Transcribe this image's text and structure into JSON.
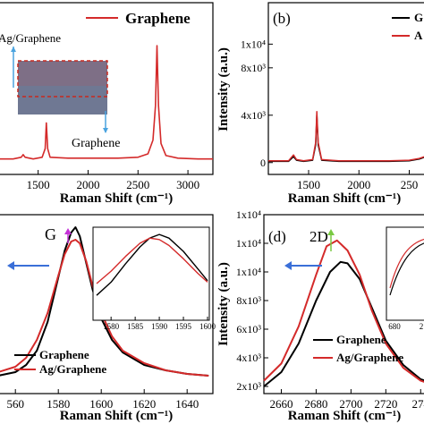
{
  "chart_data": [
    {
      "panel": "a",
      "type": "line",
      "xlabel": "Raman Shift (cm⁻¹)",
      "xlim": [
        1100,
        3250
      ],
      "ylim": [
        0,
        1
      ],
      "x_ticks": [
        "1500",
        "2000",
        "2500",
        "3000"
      ],
      "legend": [
        "Graphene"
      ],
      "annotations": [
        "Ag/Graphene",
        "Graphene"
      ],
      "series": [
        {
          "name": "Graphene",
          "color": "#d42a2a",
          "x": [
            1100,
            1250,
            1330,
            1350,
            1370,
            1450,
            1540,
            1570,
            1582,
            1595,
            1620,
            1800,
            2000,
            2300,
            2500,
            2600,
            2650,
            2675,
            2690,
            2705,
            2730,
            2780,
            2900,
            3100,
            3250
          ],
          "y": [
            0.09,
            0.09,
            0.1,
            0.115,
            0.1,
            0.09,
            0.1,
            0.15,
            0.3,
            0.15,
            0.1,
            0.095,
            0.095,
            0.095,
            0.1,
            0.12,
            0.2,
            0.4,
            0.75,
            0.4,
            0.18,
            0.11,
            0.095,
            0.09,
            0.09
          ]
        }
      ]
    },
    {
      "panel": "b",
      "type": "line",
      "xlabel": "Raman Shift (cm⁻¹)",
      "ylabel": "Intensity (a.u.)",
      "xlim": [
        1100,
        2700
      ],
      "ylim": [
        -1000,
        13500
      ],
      "x_ticks": [
        "1500",
        "2000",
        "250"
      ],
      "y_ticks": [
        "0",
        "4x10³",
        "8x10³",
        "1x10⁴"
      ],
      "legend": [
        "G",
        "A"
      ],
      "series": [
        {
          "name": "G",
          "color": "#000000",
          "x": [
            1100,
            1300,
            1350,
            1380,
            1450,
            1540,
            1570,
            1582,
            1595,
            1630,
            1800,
            2000,
            2300,
            2500,
            2600,
            2700
          ],
          "y": [
            100,
            100,
            500,
            200,
            100,
            200,
            1500,
            4000,
            1500,
            200,
            100,
            100,
            100,
            150,
            300,
            600
          ]
        },
        {
          "name": "A",
          "color": "#d42a2a",
          "x": [
            1100,
            1300,
            1350,
            1380,
            1450,
            1540,
            1570,
            1582,
            1595,
            1630,
            1800,
            2000,
            2300,
            2500,
            2600,
            2700
          ],
          "y": [
            150,
            150,
            650,
            250,
            150,
            250,
            1700,
            4300,
            1700,
            250,
            150,
            150,
            150,
            200,
            350,
            650
          ]
        }
      ]
    },
    {
      "panel": "c",
      "type": "line",
      "xlabel": "Raman Shift (cm⁻¹)",
      "xlim": [
        1552,
        1652
      ],
      "ylim": [
        0,
        1
      ],
      "x_ticks": [
        "560",
        "1580",
        "1600",
        "1620",
        "1640"
      ],
      "peak_label": "G",
      "legend": [
        "Graphene",
        "Ag/Graphene"
      ],
      "series": [
        {
          "name": "Graphene",
          "color": "#000000",
          "x": [
            1552,
            1560,
            1565,
            1570,
            1575,
            1580,
            1583,
            1586,
            1588,
            1590,
            1593,
            1596,
            1600,
            1605,
            1610,
            1620,
            1630,
            1640,
            1650
          ],
          "y": [
            0.1,
            0.12,
            0.16,
            0.24,
            0.4,
            0.65,
            0.8,
            0.9,
            0.93,
            0.88,
            0.73,
            0.58,
            0.42,
            0.3,
            0.23,
            0.16,
            0.13,
            0.11,
            0.1
          ]
        },
        {
          "name": "Ag/Graphene",
          "color": "#d42a2a",
          "x": [
            1552,
            1560,
            1565,
            1570,
            1575,
            1580,
            1583,
            1586,
            1588,
            1590,
            1593,
            1596,
            1600,
            1605,
            1610,
            1620,
            1630,
            1640,
            1650
          ],
          "y": [
            0.12,
            0.15,
            0.2,
            0.3,
            0.45,
            0.66,
            0.78,
            0.85,
            0.86,
            0.84,
            0.74,
            0.6,
            0.45,
            0.32,
            0.24,
            0.17,
            0.13,
            0.11,
            0.1
          ]
        }
      ],
      "inset": {
        "xlim": [
          1577,
          1600
        ],
        "x_ticks": [
          "1580",
          "1585",
          "1590",
          "1595",
          "1600"
        ],
        "series": [
          {
            "name": "Graphene",
            "color": "#000000",
            "x": [
              1577,
              1580,
              1583,
              1586,
              1588,
              1590,
              1592,
              1595,
              1598,
              1600
            ],
            "y": [
              0.12,
              0.3,
              0.55,
              0.78,
              0.9,
              0.95,
              0.9,
              0.72,
              0.48,
              0.32
            ]
          },
          {
            "name": "Ag/Graphene",
            "color": "#d42a2a",
            "x": [
              1577,
              1580,
              1583,
              1586,
              1588,
              1590,
              1592,
              1595,
              1598,
              1600
            ],
            "y": [
              0.28,
              0.45,
              0.65,
              0.83,
              0.9,
              0.88,
              0.8,
              0.62,
              0.42,
              0.3
            ]
          }
        ]
      }
    },
    {
      "panel": "d",
      "type": "line",
      "xlabel": "Raman Shift (cm⁻¹)",
      "ylabel": "Intensity (a.u.)",
      "xlim": [
        2650,
        2745
      ],
      "ylim": [
        1500,
        14000
      ],
      "x_ticks": [
        "2660",
        "2680",
        "2700",
        "2720",
        "274"
      ],
      "y_ticks": [
        "2x10³",
        "4x10³",
        "6x10³",
        "8x10³",
        "1x10⁴",
        "1x10⁴",
        "1x10⁴"
      ],
      "peak_label": "2D",
      "legend": [
        "Graphene",
        "Ag/Graphene"
      ],
      "series": [
        {
          "name": "Graphene",
          "color": "#000000",
          "x": [
            2650,
            2660,
            2670,
            2680,
            2688,
            2694,
            2698,
            2705,
            2712,
            2720,
            2730,
            2740,
            2745
          ],
          "y": [
            2000,
            3000,
            5000,
            8000,
            10000,
            10700,
            10600,
            9500,
            7500,
            5200,
            3500,
            2500,
            2300
          ]
        },
        {
          "name": "Ag/Graphene",
          "color": "#d42a2a",
          "x": [
            2650,
            2660,
            2670,
            2680,
            2686,
            2692,
            2698,
            2705,
            2712,
            2720,
            2730,
            2740,
            2745
          ],
          "y": [
            2400,
            3600,
            6200,
            9800,
            11800,
            12200,
            11500,
            9800,
            7300,
            5000,
            3300,
            2400,
            2200
          ]
        }
      ],
      "inset": {
        "x_ticks": [
          "680",
          "2"
        ]
      }
    }
  ]
}
